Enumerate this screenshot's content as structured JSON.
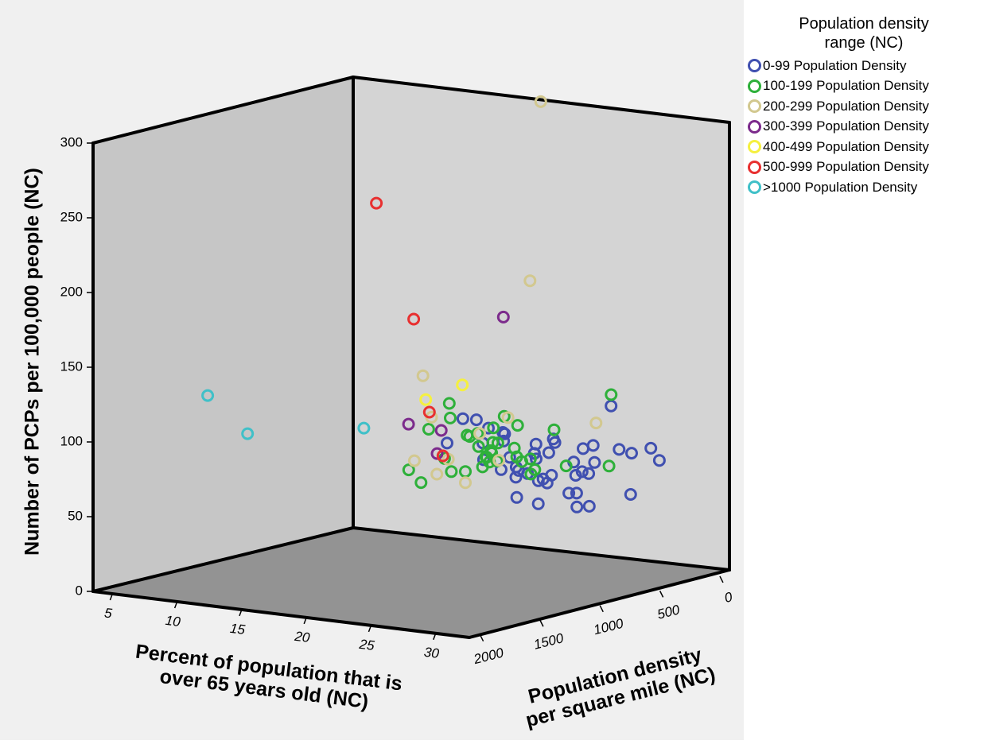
{
  "chart_data": {
    "type": "scatter",
    "subtype": "3d-scatter",
    "title": "",
    "axes": {
      "x": {
        "label": "Percent of population that is over 65 years old (NC)",
        "label_lines": [
          "Percent of population that is",
          "over 65 years old (NC)"
        ],
        "ticks": [
          5,
          10,
          15,
          20,
          25,
          30
        ],
        "range": [
          3.5,
          32.6
        ]
      },
      "z": {
        "label": "Population density per square mile (NC)",
        "label_lines": [
          "Population density",
          "per square mile (NC)"
        ],
        "ticks": [
          0,
          500,
          1000,
          1500,
          2000
        ],
        "range": [
          -80,
          2090
        ]
      },
      "y": {
        "label": "Number of PCPs per 100,000 people (NC)",
        "ticks": [
          0,
          50,
          100,
          150,
          200,
          250,
          300
        ],
        "range": [
          0,
          300
        ]
      }
    },
    "grid": false,
    "legend_position": "top-right",
    "legend": {
      "title_lines": [
        "Population density",
        "range (NC)"
      ],
      "entries": [
        {
          "name": "0-99 Population Density",
          "color": "#4050b0"
        },
        {
          "name": "100-199 Population Density",
          "color": "#2eb03a"
        },
        {
          "name": "200-299 Population Density",
          "color": "#d2c88f"
        },
        {
          "name": "300-399 Population Density",
          "color": "#7c2b8c"
        },
        {
          "name": "400-499 Population Density",
          "color": "#f5f040"
        },
        {
          "name": "500-999 Population Density",
          "color": "#e83030"
        },
        {
          "name": ">1000 Population Density",
          "color": "#40c0c8"
        }
      ]
    },
    "series": [
      {
        "name": "0-99 Population Density",
        "color": "#4050b0",
        "points": [
          [
            22.8,
            60,
            146
          ],
          [
            14.2,
            89,
            159
          ],
          [
            27.0,
            79,
            132
          ],
          [
            16.7,
            80,
            80
          ],
          [
            14.8,
            88,
            111
          ],
          [
            15.6,
            83,
            97
          ],
          [
            16.6,
            75,
            78
          ],
          [
            16.5,
            56,
            88
          ],
          [
            20.8,
            79,
            103
          ],
          [
            23.7,
            80,
            97
          ],
          [
            18.9,
            69,
            71
          ],
          [
            19.2,
            66,
            87
          ],
          [
            19.5,
            52,
            101
          ],
          [
            20.1,
            51,
            93
          ],
          [
            22.2,
            46,
            73
          ],
          [
            23.3,
            63,
            146
          ],
          [
            20.0,
            54,
            116
          ],
          [
            18.2,
            58,
            126
          ],
          [
            18.0,
            60,
            124
          ],
          [
            20.6,
            57,
            110
          ],
          [
            17.2,
            65,
            92
          ],
          [
            23.9,
            69,
            107
          ],
          [
            18.7,
            56,
            105
          ],
          [
            15.0,
            72,
            79
          ],
          [
            21.8,
            46,
            95
          ],
          [
            26.5,
            50,
            86
          ],
          [
            22.9,
            77,
            95
          ],
          [
            11.9,
            68,
            43
          ],
          [
            23.4,
            39,
            97
          ],
          [
            22.6,
            38,
            114
          ],
          [
            19.2,
            70,
            101
          ],
          [
            26.2,
            81,
            150
          ],
          [
            28.2,
            83,
            101
          ],
          [
            17.6,
            52,
            84
          ],
          [
            17.5,
            38,
            66
          ],
          [
            23.1,
            60,
            69
          ],
          [
            22.1,
            67,
            87
          ],
          [
            24.8,
            107,
            66
          ],
          [
            16.3,
            80,
            52
          ],
          [
            18.9,
            75,
            56
          ],
          [
            19.0,
            35,
            48
          ],
          [
            29.0,
            76,
            116
          ],
          [
            20.9,
            82,
            127
          ],
          [
            15.7,
            63,
            148
          ],
          [
            20.1,
            71,
            79
          ]
        ]
      },
      {
        "name": "100-199 Population Density",
        "color": "#2eb03a",
        "points": [
          [
            19.6,
            58,
            174
          ],
          [
            12.5,
            60,
            128
          ],
          [
            16.7,
            75,
            137
          ],
          [
            19.2,
            67,
            135
          ],
          [
            19.5,
            60,
            131
          ],
          [
            18.4,
            68,
            163
          ],
          [
            17.4,
            94,
            160
          ],
          [
            13.1,
            98,
            154
          ],
          [
            15.6,
            58,
            146
          ],
          [
            14.9,
            79,
            112
          ],
          [
            11.5,
            79,
            153
          ],
          [
            9.9,
            50,
            147
          ],
          [
            15.5,
            64,
            108
          ],
          [
            20.9,
            88,
            121
          ],
          [
            13.4,
            89,
            178
          ],
          [
            17.7,
            72,
            107
          ],
          [
            15.7,
            64,
            121
          ],
          [
            11.0,
            43,
            163
          ],
          [
            16.6,
            69,
            178
          ],
          [
            16.7,
            63,
            144
          ],
          [
            15.2,
            71,
            136
          ],
          [
            18.1,
            88,
            123
          ],
          [
            16.0,
            74,
            104
          ],
          [
            16.1,
            84,
            109
          ],
          [
            25.4,
            69,
            148
          ],
          [
            14.5,
            77,
            134
          ],
          [
            21.9,
            65,
            128
          ],
          [
            14.1,
            77,
            113
          ],
          [
            14.1,
            53,
            128
          ],
          [
            16.5,
            63,
            185
          ],
          [
            18.7,
            65,
            153
          ],
          [
            13.4,
            53,
            169
          ],
          [
            25.9,
            118,
            184
          ],
          [
            16.7,
            71,
            196
          ]
        ]
      },
      {
        "name": "200-299 Population Density",
        "color": "#d2c88f",
        "points": [
          [
            21.3,
            311,
            275
          ],
          [
            20.7,
            191,
            300
          ],
          [
            12.9,
            91,
            280
          ],
          [
            11.9,
            117,
            244
          ],
          [
            11.4,
            60,
            262
          ],
          [
            18.8,
            97,
            279
          ],
          [
            18.2,
            68,
            290
          ],
          [
            14.1,
            64,
            270
          ],
          [
            15.2,
            49,
            246
          ],
          [
            16.6,
            84,
            277
          ],
          [
            25.1,
            99,
            224
          ],
          [
            13.2,
            53,
            268
          ]
        ]
      },
      {
        "name": "300-399 Population Density",
        "color": "#7c2b8c",
        "points": [
          [
            19.1,
            166,
            350
          ],
          [
            11.9,
            87,
            364
          ],
          [
            13.9,
            69,
            342
          ],
          [
            14.6,
            86,
            383
          ]
        ]
      },
      {
        "name": "400-499 Population Density",
        "color": "#f5f040",
        "points": [
          [
            16.8,
            120,
            444
          ],
          [
            13.6,
            106,
            404
          ]
        ]
      },
      {
        "name": "500-999 Population Density",
        "color": "#e83030",
        "points": [
          [
            12.8,
            243,
            730
          ],
          [
            14.3,
            164,
            580
          ],
          [
            15.8,
            104,
            611
          ],
          [
            16.9,
            76,
            617
          ]
        ]
      },
      {
        "name": ">1000 Population Density",
        "color": "#40c0c8",
        "points": [
          [
            22.4,
            125,
            1870
          ],
          [
            13.5,
            112,
            1880
          ],
          [
            5.6,
            119,
            1360
          ]
        ]
      }
    ]
  }
}
